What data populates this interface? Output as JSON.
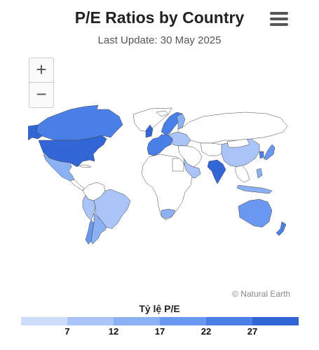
{
  "header": {
    "title": "P/E Ratios by Country",
    "subtitle": "Last Update: 30 May 2025",
    "menu_icon": "hamburger-menu-icon"
  },
  "map_controls": {
    "zoom_in": "+",
    "zoom_out": "−"
  },
  "credit": "© Natural Earth",
  "legend": {
    "title": "Tỷ lệ P/E",
    "ticks": [
      "7",
      "12",
      "17",
      "22",
      "27"
    ],
    "colors": [
      "#cddcfb",
      "#aac4f7",
      "#8bb0f3",
      "#6a97ef",
      "#4b7fe8",
      "#3266d6"
    ]
  },
  "colors": {
    "land_no_data": "#ffffff",
    "border": "#444444"
  }
}
